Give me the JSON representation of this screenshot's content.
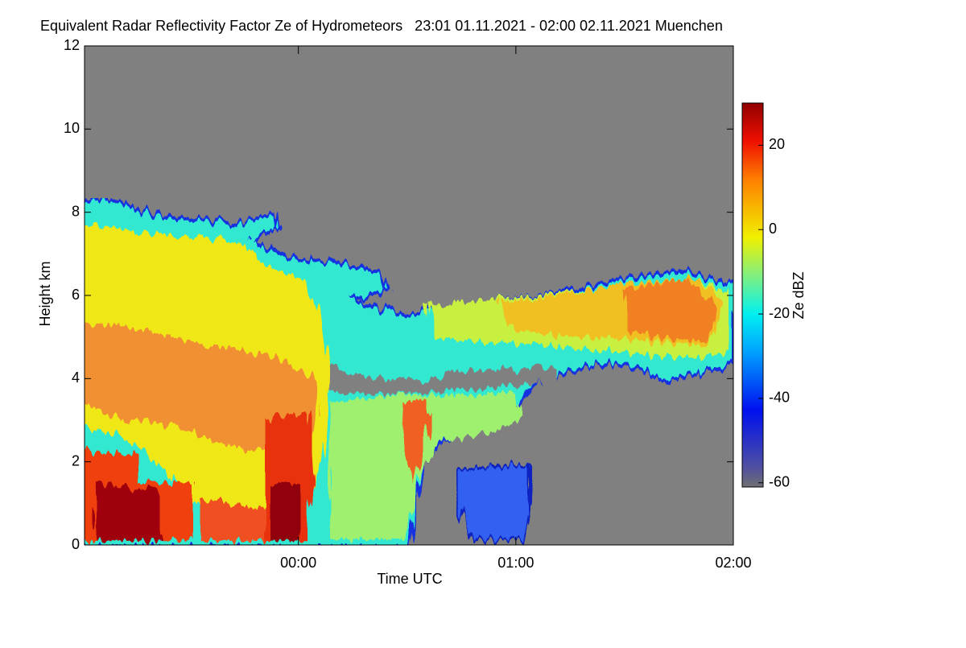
{
  "chart_data": {
    "type": "heatmap",
    "title": "Equivalent Radar Reflectivity Factor Ze of Hydrometeors   23:01 01.11.2021 - 02:00 02.11.2021 Muenchen",
    "x_label": "Time UTC",
    "y_label": "Height km",
    "xlim": [
      1,
      180
    ],
    "xticks": [
      {
        "value": 60,
        "label": "00:00"
      },
      {
        "value": 120,
        "label": "01:00"
      },
      {
        "value": 180,
        "label": "02:00"
      }
    ],
    "ylim": [
      0,
      12
    ],
    "yticks": [
      0,
      2,
      4,
      6,
      8,
      10,
      12
    ],
    "colorbar": {
      "label": "Ze dBZ",
      "zlim": [
        -61,
        30
      ],
      "zticks": [
        20,
        0,
        -20,
        -40,
        -60
      ]
    }
  }
}
